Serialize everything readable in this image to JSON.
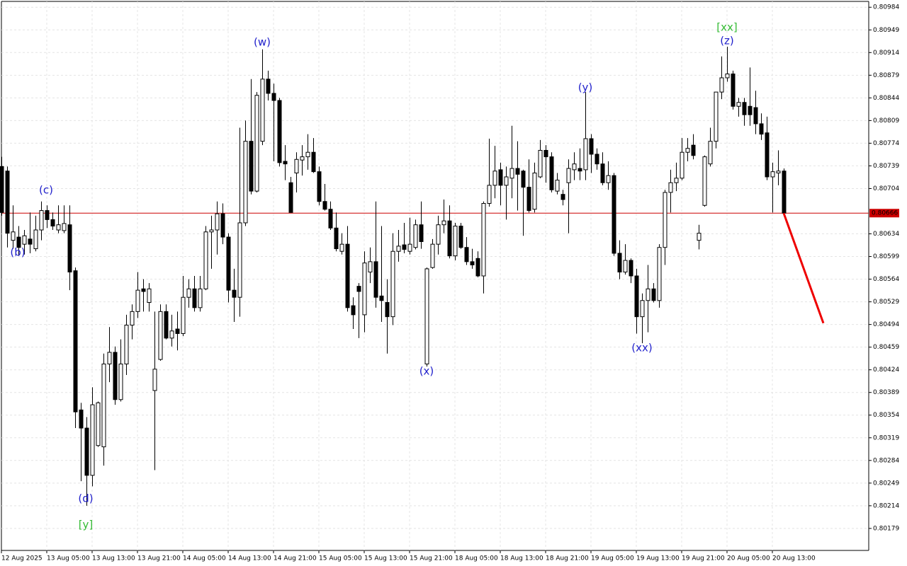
{
  "chart_data": {
    "type": "candlestick",
    "up_color": "#ffffff",
    "down_color": "#000000",
    "grid": true,
    "ylim": [
      0.80145,
      0.80993
    ],
    "yticks": [
      0.80984,
      0.80949,
      0.80914,
      0.80879,
      0.80844,
      0.80809,
      0.80774,
      0.80739,
      0.80704,
      0.80634,
      0.80599,
      0.80564,
      0.80529,
      0.80494,
      0.80459,
      0.80424,
      0.80389,
      0.80354,
      0.80319,
      0.80284,
      0.80249,
      0.80214,
      0.80179
    ],
    "current_price": {
      "value": 0.80666,
      "color": "#cc0000"
    },
    "forecast": {
      "start": 0.80666,
      "end": 0.80496,
      "color": "#ee0000"
    },
    "categories": [
      "12 Aug 2025",
      null,
      null,
      null,
      null,
      null,
      null,
      null,
      "13 Aug 05:00",
      null,
      null,
      null,
      null,
      null,
      null,
      null,
      "13 Aug 13:00",
      null,
      null,
      null,
      null,
      null,
      null,
      null,
      "13 Aug 21:00",
      null,
      null,
      null,
      null,
      null,
      null,
      null,
      "14 Aug 05:00",
      null,
      null,
      null,
      null,
      null,
      null,
      null,
      "14 Aug 13:00",
      null,
      null,
      null,
      null,
      null,
      null,
      null,
      "14 Aug 21:00",
      null,
      null,
      null,
      null,
      null,
      null,
      null,
      "15 Aug 05:00",
      null,
      null,
      null,
      null,
      null,
      null,
      null,
      "15 Aug 13:00",
      null,
      null,
      null,
      null,
      null,
      null,
      null,
      "15 Aug 21:00",
      null,
      null,
      null,
      null,
      null,
      null,
      null,
      "18 Aug 05:00",
      null,
      null,
      null,
      null,
      null,
      null,
      null,
      "18 Aug 13:00",
      null,
      null,
      null,
      null,
      null,
      null,
      null,
      "18 Aug 21:00",
      null,
      null,
      null,
      null,
      null,
      null,
      null,
      "19 Aug 05:00",
      null,
      null,
      null,
      null,
      null,
      null,
      null,
      "19 Aug 13:00",
      null,
      null,
      null,
      null,
      null,
      null,
      null,
      "19 Aug 21:00",
      null,
      null,
      null,
      null,
      null,
      null,
      null,
      "20 Aug 05:00",
      null,
      null,
      null,
      null,
      null,
      null,
      null,
      "20 Aug 13:00",
      null,
      null
    ],
    "open": [
      0.80738,
      0.80731,
      0.80624,
      0.80629,
      0.80618,
      0.80626,
      0.80611,
      0.8064,
      0.8067,
      0.80656,
      0.8064,
      0.80639,
      0.80648,
      0.80577,
      0.80362,
      0.80334,
      0.80261,
      0.80307,
      0.80305,
      0.80433,
      0.80451,
      0.80378,
      0.80433,
      0.80493,
      0.80514,
      0.80549,
      0.80528,
      0.80392,
      0.8044,
      0.80514,
      0.80473,
      0.80487,
      0.8048,
      0.80536,
      0.80549,
      0.8052,
      0.80549,
      0.80637,
      0.8064,
      0.80665,
      0.80629,
      0.80547,
      0.80536,
      0.80651,
      0.80777,
      0.807,
      0.80777,
      0.80873,
      0.80851,
      0.8084,
      0.80746,
      0.80713,
      0.80728,
      0.80748,
      0.80753,
      0.8076,
      0.8073,
      0.80684,
      0.80672,
      0.80643,
      0.80607,
      0.80618,
      0.80523,
      0.80553,
      0.80509,
      0.80575,
      0.80591,
      0.80538,
      0.80528,
      0.80506,
      0.80607,
      0.80617,
      0.80607,
      0.80613,
      0.80648,
      0.80433,
      0.80582,
      0.80618,
      0.80648,
      0.80654,
      0.806,
      0.80646,
      0.80613,
      0.80591,
      0.80596,
      0.80569,
      0.80681,
      0.80709,
      0.80733,
      0.80709,
      0.8072,
      0.80735,
      0.80731,
      0.80706,
      0.80672,
      0.80722,
      0.80763,
      0.80753,
      0.807,
      0.80695,
      0.80713,
      0.80733,
      0.80735,
      0.80733,
      0.80781,
      0.80757,
      0.80742,
      0.80713,
      0.80724,
      0.80604,
      0.80575,
      0.80593,
      0.80569,
      0.80506,
      0.80531,
      0.80549,
      0.80531,
      0.80613,
      0.80698,
      0.80713,
      0.8072,
      0.8076,
      0.80771,
      0.80624,
      0.80678,
      0.80742,
      0.80777,
      0.80853,
      0.80875,
      0.80881,
      0.80831,
      0.80837,
      0.80831,
      0.80829,
      0.80804,
      0.8079,
      0.80722,
      0.80728,
      0.80731
    ],
    "high": [
      0.80753,
      0.80738,
      0.80678,
      0.80646,
      0.8064,
      0.80667,
      0.80662,
      0.80684,
      0.80678,
      0.80667,
      0.80678,
      0.80678,
      0.80678,
      0.80582,
      0.80373,
      0.80351,
      0.80397,
      0.80375,
      0.80449,
      0.8049,
      0.8046,
      0.80471,
      0.80509,
      0.80525,
      0.80575,
      0.80564,
      0.80558,
      0.80514,
      0.80525,
      0.80525,
      0.80509,
      0.80514,
      0.80569,
      0.80564,
      0.80569,
      0.80569,
      0.80646,
      0.80662,
      0.80684,
      0.80681,
      0.80635,
      0.8058,
      0.80798,
      0.80809,
      0.80873,
      0.80853,
      0.80919,
      0.80886,
      0.80866,
      0.80844,
      0.80771,
      0.80722,
      0.8076,
      0.80771,
      0.80788,
      0.80782,
      0.80738,
      0.80711,
      0.80684,
      0.80667,
      0.80635,
      0.80646,
      0.80536,
      0.80558,
      0.80607,
      0.80613,
      0.80684,
      0.80646,
      0.80564,
      0.80635,
      0.8064,
      0.80651,
      0.80659,
      0.80656,
      0.80684,
      0.80582,
      0.80626,
      0.80662,
      0.80687,
      0.80678,
      0.80651,
      0.80651,
      0.80629,
      0.80611,
      0.80607,
      0.80684,
      0.80781,
      0.8077,
      0.80744,
      0.80738,
      0.80801,
      0.80777,
      0.80733,
      0.80749,
      0.80744,
      0.80779,
      0.80771,
      0.8076,
      0.80728,
      0.80702,
      0.80749,
      0.8076,
      0.80766,
      0.80853,
      0.80788,
      0.80766,
      0.8076,
      0.80746,
      0.80728,
      0.80624,
      0.80618,
      0.80596,
      0.8058,
      0.80542,
      0.80586,
      0.80558,
      0.80618,
      0.80702,
      0.80733,
      0.80744,
      0.80782,
      0.80782,
      0.80788,
      0.80648,
      0.80755,
      0.80798,
      0.80853,
      0.80908,
      0.80923,
      0.80886,
      0.80844,
      0.80844,
      0.80891,
      0.80855,
      0.8082,
      0.80815,
      0.80744,
      0.80763,
      0.80735
    ],
    "low": [
      0.80662,
      0.80613,
      0.80611,
      0.806,
      0.80602,
      0.80604,
      0.80607,
      0.80624,
      0.80643,
      0.8064,
      0.80635,
      0.80635,
      0.80547,
      0.80334,
      0.80252,
      0.80214,
      0.80244,
      0.80305,
      0.80276,
      0.80405,
      0.8037,
      0.80375,
      0.80416,
      0.80471,
      0.80504,
      0.80514,
      0.80514,
      0.80269,
      0.80438,
      0.80471,
      0.8046,
      0.80454,
      0.80476,
      0.8052,
      0.80514,
      0.80514,
      0.80547,
      0.8058,
      0.80602,
      0.80618,
      0.80528,
      0.80498,
      0.80506,
      0.80646,
      0.80695,
      0.80698,
      0.80771,
      0.8084,
      0.80746,
      0.80738,
      0.80717,
      0.80667,
      0.80698,
      0.80724,
      0.80733,
      0.80728,
      0.80678,
      0.8067,
      0.8064,
      0.80607,
      0.80602,
      0.80514,
      0.80487,
      0.80473,
      0.80482,
      0.80558,
      0.8052,
      0.80498,
      0.80449,
      0.80493,
      0.80591,
      0.80604,
      0.80602,
      0.8061,
      0.80611,
      0.80429,
      0.8058,
      0.80602,
      0.80635,
      0.80596,
      0.80593,
      0.80611,
      0.80586,
      0.8058,
      0.80567,
      0.80542,
      0.80676,
      0.80689,
      0.80678,
      0.80656,
      0.80689,
      0.8067,
      0.80631,
      0.80667,
      0.80667,
      0.8072,
      0.80713,
      0.80698,
      0.80695,
      0.80678,
      0.80635,
      0.80717,
      0.80717,
      0.80717,
      0.80728,
      0.80733,
      0.80709,
      0.80702,
      0.806,
      0.80564,
      0.80571,
      0.80558,
      0.8048,
      0.80465,
      0.80482,
      0.80528,
      0.8052,
      0.80586,
      0.80667,
      0.807,
      0.80717,
      0.80746,
      0.80749,
      0.8061,
      0.80676,
      0.80738,
      0.80766,
      0.80842,
      0.80869,
      0.80826,
      0.80815,
      0.80801,
      0.80801,
      0.80788,
      0.80779,
      0.80717,
      0.80667,
      0.80709,
      0.80666
    ],
    "close": [
      0.80667,
      0.80635,
      0.80637,
      0.80613,
      0.80631,
      0.80618,
      0.8064,
      0.8067,
      0.80656,
      0.80646,
      0.80648,
      0.8065,
      0.80575,
      0.80359,
      0.80334,
      0.80261,
      0.8037,
      0.80373,
      0.80433,
      0.80451,
      0.80378,
      0.80433,
      0.80493,
      0.80514,
      0.80547,
      0.80545,
      0.80549,
      0.80425,
      0.80514,
      0.80473,
      0.80484,
      0.8048,
      0.80536,
      0.80549,
      0.8052,
      0.80549,
      0.80637,
      0.8064,
      0.80665,
      0.80629,
      0.80547,
      0.80536,
      0.80651,
      0.80777,
      0.807,
      0.80848,
      0.80873,
      0.80851,
      0.8084,
      0.80744,
      0.80742,
      0.80667,
      0.80749,
      0.80753,
      0.8076,
      0.8073,
      0.80684,
      0.80672,
      0.80643,
      0.80611,
      0.80618,
      0.8052,
      0.80509,
      0.80545,
      0.80589,
      0.80591,
      0.80536,
      0.80531,
      0.80506,
      0.80607,
      0.80615,
      0.8061,
      0.80618,
      0.80648,
      0.80622,
      0.8058,
      0.80618,
      0.80648,
      0.80654,
      0.806,
      0.80646,
      0.80613,
      0.80591,
      0.80586,
      0.80569,
      0.80681,
      0.80709,
      0.80731,
      0.80709,
      0.80722,
      0.80735,
      0.80726,
      0.80706,
      0.8067,
      0.80728,
      0.80763,
      0.80753,
      0.80702,
      0.80717,
      0.80687,
      0.80735,
      0.80742,
      0.80731,
      0.80781,
      0.80757,
      0.80742,
      0.80713,
      0.80724,
      0.80604,
      0.80575,
      0.80593,
      0.80569,
      0.80506,
      0.80531,
      0.80549,
      0.80531,
      0.80613,
      0.80698,
      0.80713,
      0.8072,
      0.8076,
      0.80766,
      0.80755,
      0.80635,
      0.80753,
      0.80777,
      0.80853,
      0.80875,
      0.80881,
      0.80831,
      0.80837,
      0.80818,
      0.80818,
      0.80804,
      0.80788,
      0.80722,
      0.8073,
      0.80731,
      0.80666
    ],
    "annotations": [
      {
        "text": "(b)",
        "color": "#2222cc"
      },
      {
        "text": "(c)",
        "color": "#2222cc"
      },
      {
        "text": "(d)",
        "color": "#2222cc"
      },
      {
        "text": "[y]",
        "color": "#33bb33"
      },
      {
        "text": "(w)",
        "color": "#2222cc"
      },
      {
        "text": "(x)",
        "color": "#2222cc"
      },
      {
        "text": "(y)",
        "color": "#2222cc"
      },
      {
        "text": "(xx)",
        "color": "#2222cc"
      },
      {
        "text": "[xx]",
        "color": "#33bb33"
      },
      {
        "text": "(z)",
        "color": "#2222cc"
      }
    ]
  }
}
